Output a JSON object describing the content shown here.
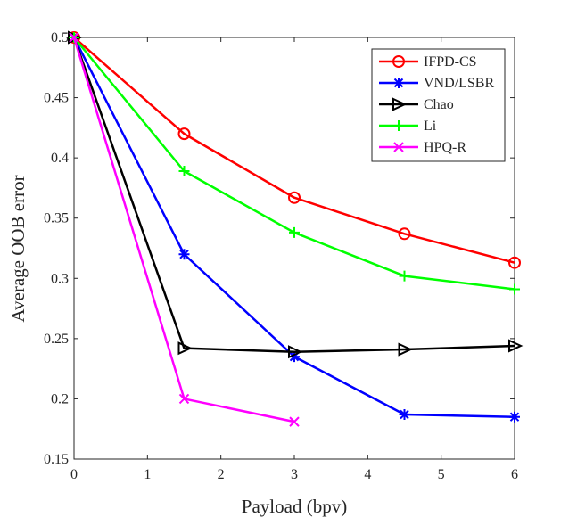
{
  "chart_data": {
    "type": "line",
    "title": "",
    "xlabel": "Payload (bpv)",
    "ylabel": "Average OOB error",
    "xlim": [
      0,
      6
    ],
    "ylim": [
      0.15,
      0.5
    ],
    "xticks": [
      0,
      1,
      2,
      3,
      4,
      5,
      6
    ],
    "yticks": [
      0.15,
      0.2,
      0.25,
      0.3,
      0.35,
      0.4,
      0.45,
      0.5
    ],
    "xtick_labels": [
      "0",
      "1",
      "2",
      "3",
      "4",
      "5",
      "6"
    ],
    "ytick_labels": [
      "0.15",
      "0.2",
      "0.25",
      "0.3",
      "0.35",
      "0.4",
      "0.45",
      "0.5"
    ],
    "grid": false,
    "legend_position": "top-right",
    "series": [
      {
        "name": "IFPD-CS",
        "color": "#ff0000",
        "marker": "circle",
        "x": [
          0,
          1.5,
          3,
          4.5,
          6
        ],
        "y": [
          0.5,
          0.42,
          0.367,
          0.337,
          0.313
        ]
      },
      {
        "name": "VND/LSBR",
        "color": "#0000ff",
        "marker": "asterisk",
        "x": [
          0,
          1.5,
          3,
          4.5,
          6
        ],
        "y": [
          0.5,
          0.32,
          0.235,
          0.187,
          0.185
        ]
      },
      {
        "name": "Chao",
        "color": "#000000",
        "marker": "triangle-right",
        "x": [
          0,
          1.5,
          3,
          4.5,
          6
        ],
        "y": [
          0.5,
          0.242,
          0.239,
          0.241,
          0.244
        ]
      },
      {
        "name": "Li",
        "color": "#00ff00",
        "marker": "plus",
        "x": [
          0,
          1.5,
          3,
          4.5,
          6
        ],
        "y": [
          0.5,
          0.389,
          0.338,
          0.302,
          0.291
        ]
      },
      {
        "name": "HPQ-R",
        "color": "#ff00ff",
        "marker": "x",
        "x": [
          0,
          1.5,
          3
        ],
        "y": [
          0.5,
          0.2,
          0.181
        ]
      }
    ]
  }
}
